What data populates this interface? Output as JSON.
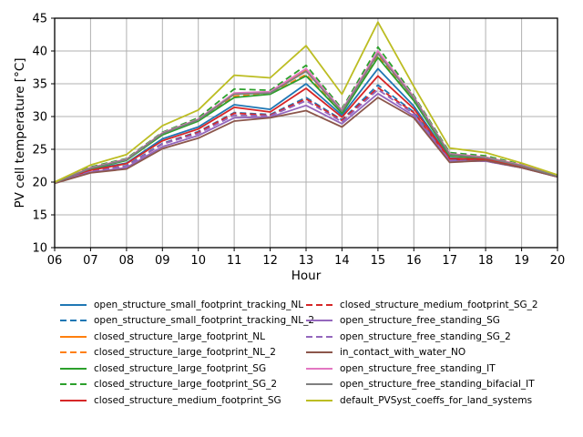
{
  "figure": {
    "background": "#ffffff",
    "grid_color": "#b0b0b0",
    "axis_color": "#000000"
  },
  "chart_data": {
    "type": "line",
    "title": "",
    "xlabel": "Hour",
    "ylabel": "PV cell temperature [°C]",
    "x_labels": [
      "06",
      "07",
      "08",
      "09",
      "10",
      "11",
      "12",
      "13",
      "14",
      "15",
      "16",
      "17",
      "18",
      "19",
      "20"
    ],
    "yticks": [
      10,
      15,
      20,
      25,
      30,
      35,
      40,
      45
    ],
    "ylim": [
      10,
      45
    ],
    "grid": true,
    "legend_position": "below-two-columns",
    "series": [
      {
        "name": "open_structure_small_footprint_tracking_NL",
        "color": "#1f77b4",
        "style": "solid",
        "values": [
          19.9,
          21.9,
          22.9,
          26.6,
          28.4,
          31.8,
          31.1,
          35.0,
          30.2,
          37.3,
          31.6,
          23.7,
          23.4,
          22.4,
          20.9
        ]
      },
      {
        "name": "open_structure_small_footprint_tracking_NL_2",
        "color": "#1f77b4",
        "style": "dashed",
        "values": [
          19.9,
          21.7,
          22.5,
          25.9,
          27.7,
          30.6,
          30.3,
          32.9,
          29.5,
          34.8,
          30.7,
          23.4,
          23.3,
          22.3,
          20.9
        ]
      },
      {
        "name": "closed_structure_large_footprint_NL",
        "color": "#ff7f0e",
        "style": "solid",
        "values": [
          19.9,
          22.2,
          23.5,
          27.4,
          29.5,
          33.5,
          33.7,
          37.1,
          30.9,
          39.9,
          32.9,
          24.3,
          23.8,
          22.6,
          21.0
        ]
      },
      {
        "name": "closed_structure_large_footprint_NL_2",
        "color": "#ff7f0e",
        "style": "dashed",
        "values": [
          19.9,
          22.1,
          23.4,
          27.3,
          29.4,
          33.1,
          33.5,
          36.4,
          30.6,
          39.3,
          32.5,
          24.1,
          23.6,
          22.5,
          20.9
        ]
      },
      {
        "name": "closed_structure_large_footprint_SG",
        "color": "#2ca02c",
        "style": "solid",
        "values": [
          19.9,
          22.0,
          23.3,
          27.2,
          29.3,
          32.9,
          33.4,
          36.2,
          30.5,
          39.0,
          32.4,
          24.0,
          23.6,
          22.5,
          20.9
        ]
      },
      {
        "name": "closed_structure_large_footprint_SG_2",
        "color": "#2ca02c",
        "style": "dashed",
        "values": [
          19.9,
          22.3,
          23.6,
          27.6,
          29.8,
          34.2,
          34.0,
          37.8,
          31.2,
          40.6,
          33.2,
          24.5,
          24.0,
          22.7,
          21.0
        ]
      },
      {
        "name": "closed_structure_medium_footprint_SG",
        "color": "#d62728",
        "style": "solid",
        "values": [
          19.9,
          21.8,
          22.8,
          26.3,
          28.1,
          31.4,
          30.7,
          34.3,
          29.9,
          36.2,
          31.2,
          23.6,
          23.5,
          22.4,
          20.9
        ]
      },
      {
        "name": "closed_structure_medium_footprint_SG_2",
        "color": "#d62728",
        "style": "dashed",
        "values": [
          19.9,
          21.7,
          22.4,
          25.8,
          27.6,
          30.5,
          30.2,
          32.7,
          29.4,
          34.4,
          30.6,
          23.4,
          23.3,
          22.3,
          20.9
        ]
      },
      {
        "name": "open_structure_free_standing_SG",
        "color": "#9467bd",
        "style": "solid",
        "values": [
          19.9,
          21.5,
          22.2,
          25.4,
          27.1,
          29.8,
          29.9,
          31.7,
          28.9,
          33.5,
          30.1,
          23.2,
          23.2,
          22.2,
          20.8
        ]
      },
      {
        "name": "open_structure_free_standing_SG_2",
        "color": "#9467bd",
        "style": "dashed",
        "values": [
          19.9,
          21.6,
          22.4,
          25.8,
          27.4,
          30.2,
          30.1,
          32.4,
          29.2,
          34.1,
          30.4,
          23.3,
          23.2,
          22.2,
          20.8
        ]
      },
      {
        "name": "in_contact_with_water_NO",
        "color": "#8c564b",
        "style": "solid",
        "values": [
          19.8,
          21.4,
          22.0,
          25.1,
          26.7,
          29.3,
          29.8,
          30.9,
          28.4,
          32.9,
          29.8,
          23.0,
          23.3,
          22.2,
          20.8
        ]
      },
      {
        "name": "open_structure_free_standing_IT",
        "color": "#e377c2",
        "style": "solid",
        "values": [
          19.9,
          22.2,
          23.5,
          27.5,
          29.6,
          33.6,
          33.8,
          37.3,
          31.0,
          40.0,
          33.0,
          24.3,
          23.8,
          22.6,
          21.0
        ]
      },
      {
        "name": "open_structure_free_standing_bifacial_IT",
        "color": "#7f7f7f",
        "style": "solid",
        "values": [
          19.9,
          22.1,
          23.4,
          27.4,
          29.5,
          33.4,
          33.6,
          36.9,
          30.8,
          39.6,
          32.8,
          24.2,
          23.7,
          22.5,
          20.9
        ]
      },
      {
        "name": "default_PVSyst_coeffs_for_land_systems",
        "color": "#bcbd22",
        "style": "solid",
        "values": [
          20.0,
          22.6,
          24.2,
          28.6,
          31.0,
          36.3,
          35.9,
          40.8,
          33.4,
          44.4,
          34.6,
          25.2,
          24.5,
          22.9,
          21.1
        ]
      }
    ]
  }
}
